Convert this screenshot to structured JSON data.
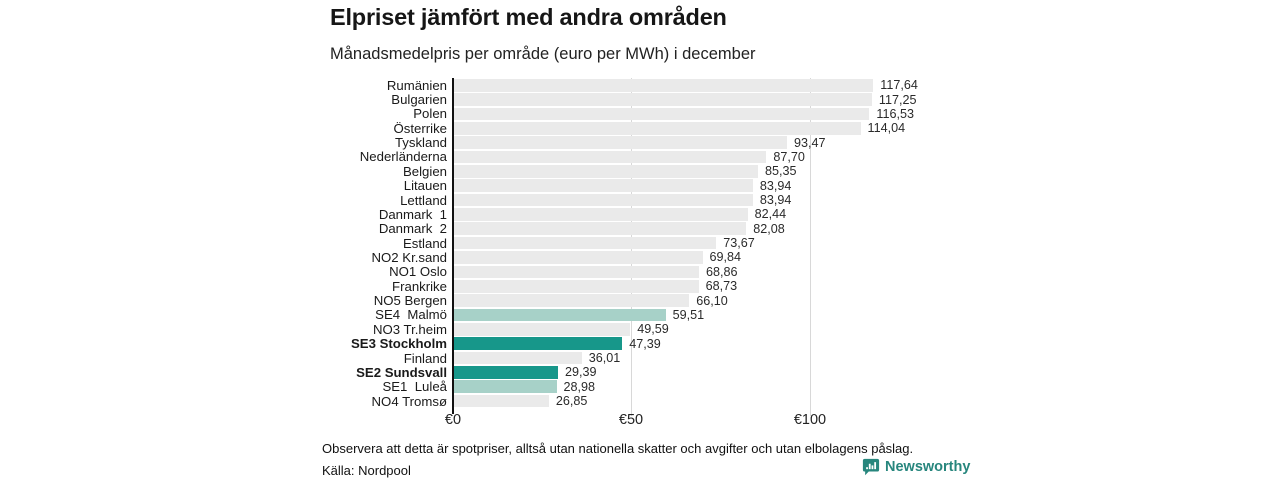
{
  "title": "Elpriset jämfört med andra områden",
  "subtitle": "Månadsmedelpris per område (euro per MWh) i december",
  "colors": {
    "default": "#eaeaea",
    "accent": "#17978a",
    "accent_light": "#a7d1c8",
    "axis": "#111111",
    "gridline": "#d8d8d8",
    "brand": "#27867d"
  },
  "chart_data": {
    "type": "bar",
    "orientation": "horizontal",
    "title": "Elpriset jämfört med andra områden",
    "subtitle": "Månadsmedelpris per område (euro per MWh) i december",
    "xlabel": "",
    "ylabel": "",
    "unit": "euro per MWh",
    "xlim": [
      0,
      125
    ],
    "x_ticks": [
      "€0",
      "€50",
      "€100"
    ],
    "x_tick_values": [
      0,
      50,
      100
    ],
    "grid": true,
    "legend": "none",
    "categories": [
      "Rumänien",
      "Bulgarien",
      "Polen",
      "Österrike",
      "Tyskland",
      "Nederländerna",
      "Belgien",
      "Litauen",
      "Lettland",
      "Danmark  1",
      "Danmark  2",
      "Estland",
      "NO2 Kr.sand",
      "NO1 Oslo",
      "Frankrike",
      "NO5 Bergen",
      "SE4  Malmö",
      "NO3 Tr.heim",
      "SE3 Stockholm",
      "Finland",
      "SE2 Sundsvall",
      "SE1  Luleå",
      "NO4 Tromsø"
    ],
    "values": [
      117.64,
      117.25,
      116.53,
      114.04,
      93.47,
      87.7,
      85.35,
      83.94,
      83.94,
      82.44,
      82.08,
      73.67,
      69.84,
      68.86,
      68.73,
      66.1,
      59.51,
      49.59,
      47.39,
      36.01,
      29.39,
      28.98,
      26.85
    ],
    "rows": [
      {
        "label": "Rumänien",
        "value": 117.64,
        "display": "117,64",
        "color": "default",
        "bold": false
      },
      {
        "label": "Bulgarien",
        "value": 117.25,
        "display": "117,25",
        "color": "default",
        "bold": false
      },
      {
        "label": "Polen",
        "value": 116.53,
        "display": "116,53",
        "color": "default",
        "bold": false
      },
      {
        "label": "Österrike",
        "value": 114.04,
        "display": "114,04",
        "color": "default",
        "bold": false
      },
      {
        "label": "Tyskland",
        "value": 93.47,
        "display": "93,47",
        "color": "default",
        "bold": false
      },
      {
        "label": "Nederländerna",
        "value": 87.7,
        "display": "87,70",
        "color": "default",
        "bold": false
      },
      {
        "label": "Belgien",
        "value": 85.35,
        "display": "85,35",
        "color": "default",
        "bold": false
      },
      {
        "label": "Litauen",
        "value": 83.94,
        "display": "83,94",
        "color": "default",
        "bold": false
      },
      {
        "label": "Lettland",
        "value": 83.94,
        "display": "83,94",
        "color": "default",
        "bold": false
      },
      {
        "label": "Danmark  1",
        "value": 82.44,
        "display": "82,44",
        "color": "default",
        "bold": false
      },
      {
        "label": "Danmark  2",
        "value": 82.08,
        "display": "82,08",
        "color": "default",
        "bold": false
      },
      {
        "label": "Estland",
        "value": 73.67,
        "display": "73,67",
        "color": "default",
        "bold": false
      },
      {
        "label": "NO2 Kr.sand",
        "value": 69.84,
        "display": "69,84",
        "color": "default",
        "bold": false
      },
      {
        "label": "NO1 Oslo",
        "value": 68.86,
        "display": "68,86",
        "color": "default",
        "bold": false
      },
      {
        "label": "Frankrike",
        "value": 68.73,
        "display": "68,73",
        "color": "default",
        "bold": false
      },
      {
        "label": "NO5 Bergen",
        "value": 66.1,
        "display": "66,10",
        "color": "default",
        "bold": false
      },
      {
        "label": "SE4  Malmö",
        "value": 59.51,
        "display": "59,51",
        "color": "accent_light",
        "bold": false
      },
      {
        "label": "NO3 Tr.heim",
        "value": 49.59,
        "display": "49,59",
        "color": "default",
        "bold": false
      },
      {
        "label": "SE3 Stockholm",
        "value": 47.39,
        "display": "47,39",
        "color": "accent",
        "bold": true
      },
      {
        "label": "Finland",
        "value": 36.01,
        "display": "36,01",
        "color": "default",
        "bold": false
      },
      {
        "label": "SE2 Sundsvall",
        "value": 29.39,
        "display": "29,39",
        "color": "accent",
        "bold": true
      },
      {
        "label": "SE1  Luleå",
        "value": 28.98,
        "display": "28,98",
        "color": "accent_light",
        "bold": false
      },
      {
        "label": "NO4 Tromsø",
        "value": 26.85,
        "display": "26,85",
        "color": "default",
        "bold": false
      }
    ]
  },
  "footer": {
    "note": "Observera att detta är spotpriser, alltså utan nationella skatter och avgifter och utan elbolagens påslag.",
    "source": "Källa: Nordpool",
    "brand": "Newsworthy"
  }
}
